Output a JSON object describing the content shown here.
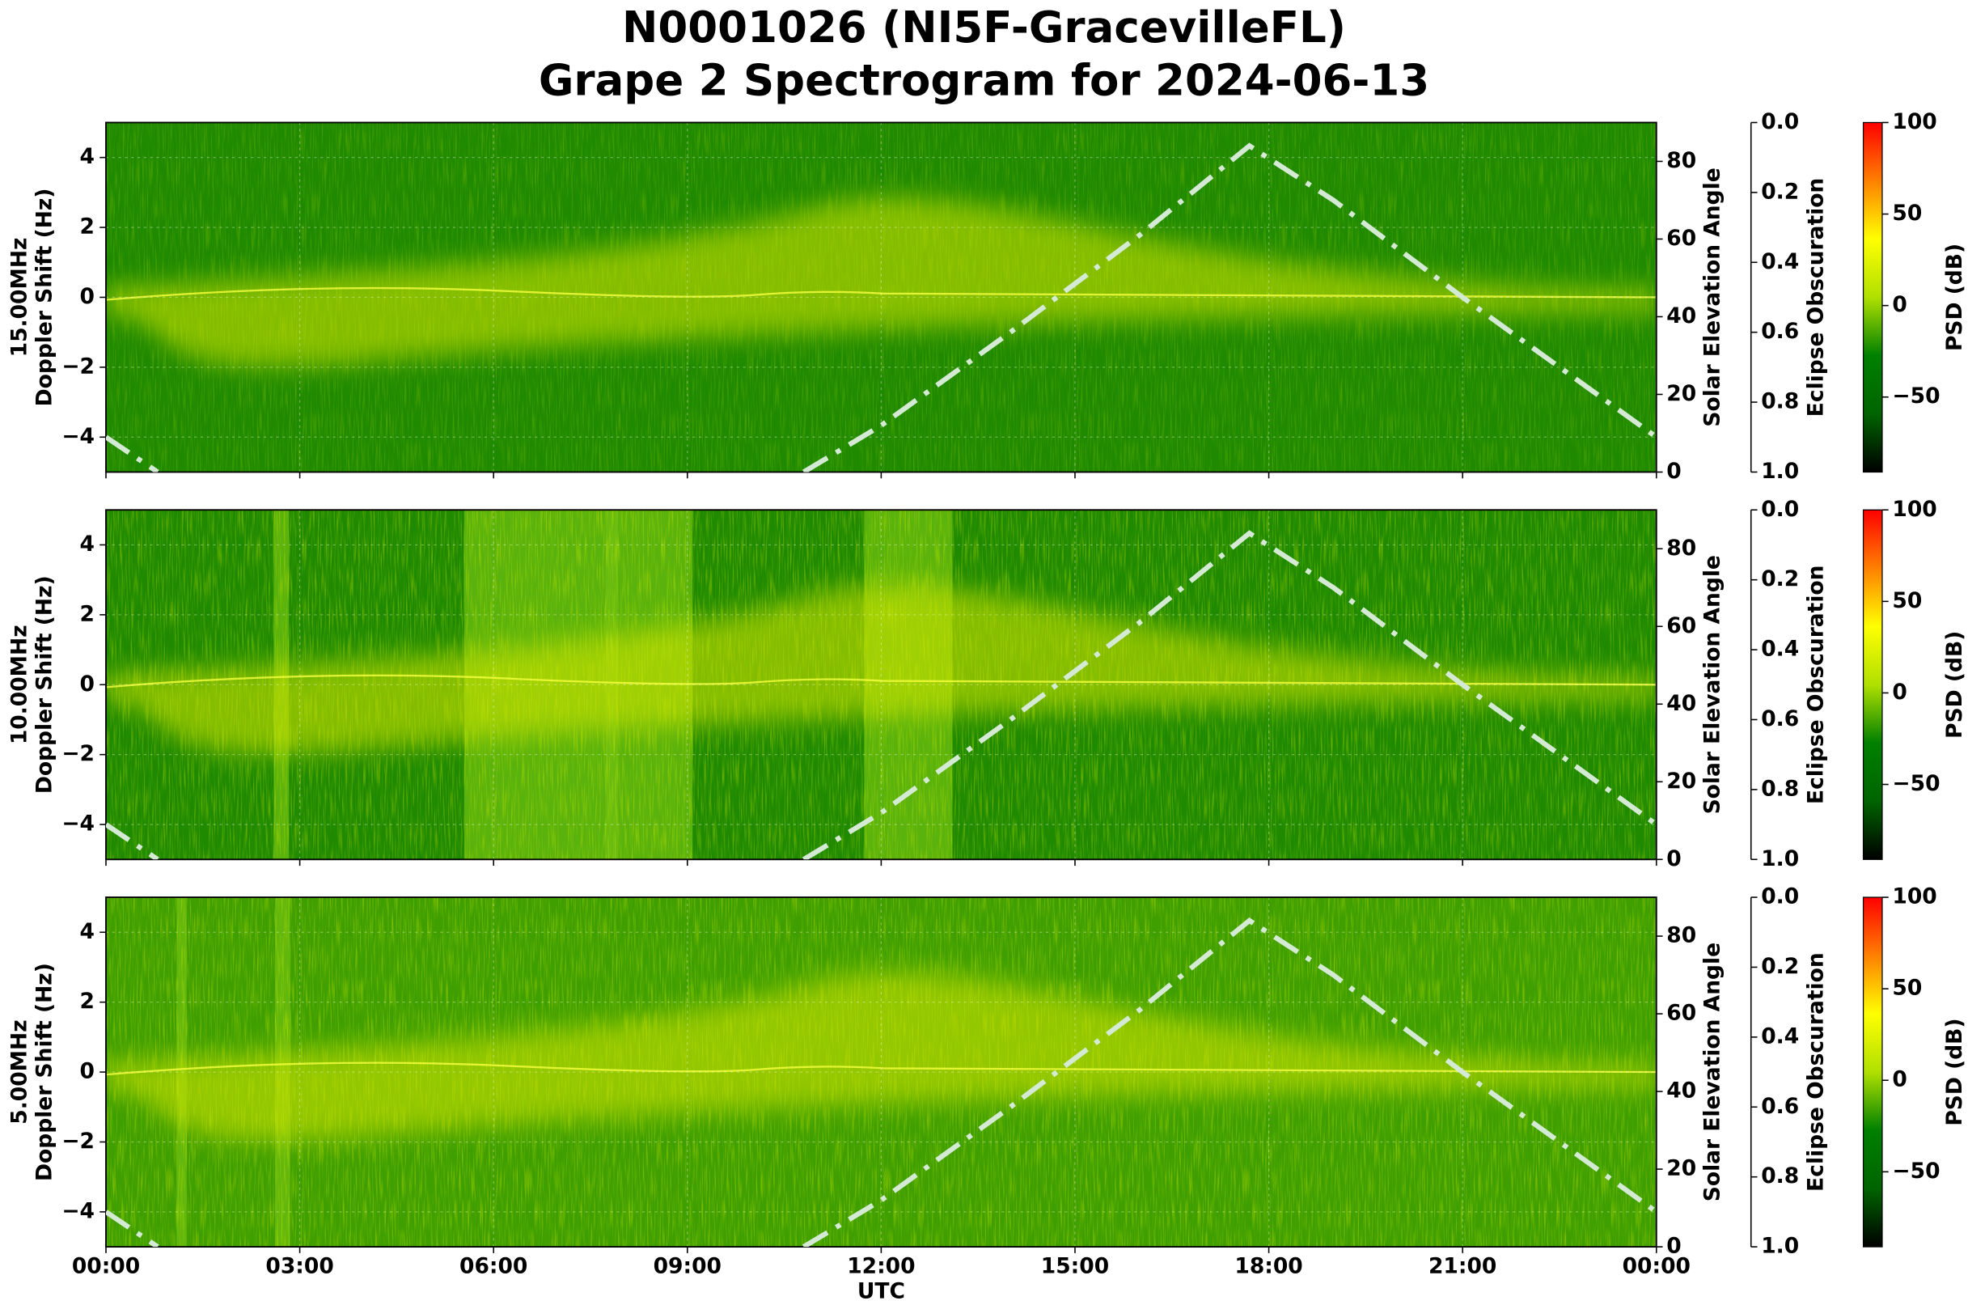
{
  "title": "N0001026 (NI5F-GracevilleFL)",
  "subtitle": "Grape 2 Spectrogram for 2024-06-13",
  "chart_data": [
    {
      "type": "spectrogram",
      "frequency": "15.00MHz",
      "ylabel": "Doppler Shift (Hz)",
      "xlim": [
        0,
        24
      ],
      "xticks": [
        0,
        3,
        6,
        9,
        12,
        15,
        18,
        21,
        24
      ],
      "ylim": [
        -5,
        5
      ],
      "yticks": [
        {
          "value": -4,
          "label": "−4"
        },
        {
          "value": -2,
          "label": "−2"
        },
        0,
        2,
        4
      ],
      "y2label": "Solar Elevation Angle",
      "y2lim": [
        0,
        90
      ],
      "y2ticks": [
        0,
        20,
        40,
        60,
        80
      ],
      "y3label": "Eclipse Obscuration",
      "y3lim": [
        0,
        1
      ],
      "y3ticks": [
        {
          "value": 0,
          "label": "0.0"
        },
        {
          "value": 0.2,
          "label": "0.2"
        },
        {
          "value": 0.4,
          "label": "0.4"
        },
        {
          "value": 0.6,
          "label": "0.6"
        },
        {
          "value": 0.8,
          "label": "0.8"
        },
        {
          "value": 1,
          "label": "1.0"
        }
      ],
      "x": [
        0,
        0.8,
        5.8,
        10.8,
        12,
        14,
        16,
        17.7,
        19,
        21,
        23,
        24
      ],
      "series": [
        {
          "color": "#d4ead4",
          "axis": "y2",
          "values": [
            9,
            0,
            null,
            0,
            12,
            36,
            61,
            84,
            70,
            45,
            21,
            9
          ]
        }
      ],
      "colorbar": {
        "label": "PSD (dB)",
        "lim": [
          -91,
          100
        ],
        "ticks": [
          {
            "value": -50,
            "label": "−50"
          },
          0,
          50,
          100
        ],
        "colors": [
          "#000000",
          "#006400",
          "#008000",
          "#b0e000",
          "#ffff00",
          "#ff8000",
          "#ff0000"
        ]
      },
      "grid": true
    },
    {
      "type": "spectrogram",
      "frequency": "10.00MHz",
      "ylabel": "Doppler Shift (Hz)",
      "xlim": [
        0,
        24
      ],
      "xticks": [
        0,
        3,
        6,
        9,
        12,
        15,
        18,
        21,
        24
      ],
      "ylim": [
        -5,
        5
      ],
      "yticks": [
        {
          "value": -4,
          "label": "−4"
        },
        {
          "value": -2,
          "label": "−2"
        },
        0,
        2,
        4
      ],
      "y2label": "Solar Elevation Angle",
      "y2lim": [
        0,
        90
      ],
      "y2ticks": [
        0,
        20,
        40,
        60,
        80
      ],
      "y3label": "Eclipse Obscuration",
      "y3lim": [
        0,
        1
      ],
      "y3ticks": [
        {
          "value": 0,
          "label": "0.0"
        },
        {
          "value": 0.2,
          "label": "0.2"
        },
        {
          "value": 0.4,
          "label": "0.4"
        },
        {
          "value": 0.6,
          "label": "0.6"
        },
        {
          "value": 0.8,
          "label": "0.8"
        },
        {
          "value": 1,
          "label": "1.0"
        }
      ],
      "x": [
        0,
        0.8,
        5.8,
        10.8,
        12,
        14,
        16,
        17.7,
        19,
        21,
        23,
        24
      ],
      "series": [
        {
          "color": "#d4ead4",
          "axis": "y2",
          "values": [
            9,
            0,
            null,
            0,
            12,
            36,
            61,
            84,
            70,
            45,
            21,
            9
          ]
        }
      ],
      "colorbar": {
        "label": "PSD (dB)",
        "lim": [
          -91,
          100
        ],
        "ticks": [
          {
            "value": -50,
            "label": "−50"
          },
          0,
          50,
          100
        ],
        "colors": [
          "#000000",
          "#006400",
          "#008000",
          "#b0e000",
          "#ffff00",
          "#ff8000",
          "#ff0000"
        ]
      },
      "grid": true
    },
    {
      "type": "spectrogram",
      "frequency": "5.00MHz",
      "ylabel": "Doppler Shift (Hz)",
      "xlabel": "UTC",
      "xlim": [
        0,
        24
      ],
      "xticks": [
        {
          "value": 0,
          "label": "00:00"
        },
        {
          "value": 3,
          "label": "03:00"
        },
        {
          "value": 6,
          "label": "06:00"
        },
        {
          "value": 9,
          "label": "09:00"
        },
        {
          "value": 12,
          "label": "12:00"
        },
        {
          "value": 15,
          "label": "15:00"
        },
        {
          "value": 18,
          "label": "18:00"
        },
        {
          "value": 21,
          "label": "21:00"
        },
        {
          "value": 24,
          "label": "00:00"
        }
      ],
      "ylim": [
        -5,
        5
      ],
      "yticks": [
        {
          "value": -4,
          "label": "−4"
        },
        {
          "value": -2,
          "label": "−2"
        },
        0,
        2,
        4
      ],
      "y2label": "Solar Elevation Angle",
      "y2lim": [
        0,
        90
      ],
      "y2ticks": [
        0,
        20,
        40,
        60,
        80
      ],
      "y3label": "Eclipse Obscuration",
      "y3lim": [
        0,
        1
      ],
      "y3ticks": [
        {
          "value": 0,
          "label": "0.0"
        },
        {
          "value": 0.2,
          "label": "0.2"
        },
        {
          "value": 0.4,
          "label": "0.4"
        },
        {
          "value": 0.6,
          "label": "0.6"
        },
        {
          "value": 0.8,
          "label": "0.8"
        },
        {
          "value": 1,
          "label": "1.0"
        }
      ],
      "x": [
        0,
        0.8,
        5.8,
        10.8,
        12,
        14,
        16,
        17.7,
        19,
        21,
        23,
        24
      ],
      "series": [
        {
          "color": "#d4ead4",
          "axis": "y2",
          "values": [
            9,
            0,
            null,
            0,
            12,
            36,
            61,
            84,
            70,
            45,
            21,
            9
          ]
        }
      ],
      "colorbar": {
        "label": "PSD (dB)",
        "lim": [
          -91,
          100
        ],
        "ticks": [
          {
            "value": -50,
            "label": "−50"
          },
          0,
          50,
          100
        ],
        "colors": [
          "#000000",
          "#006400",
          "#008000",
          "#b0e000",
          "#ffff00",
          "#ff8000",
          "#ff0000"
        ]
      },
      "grid": true
    }
  ]
}
